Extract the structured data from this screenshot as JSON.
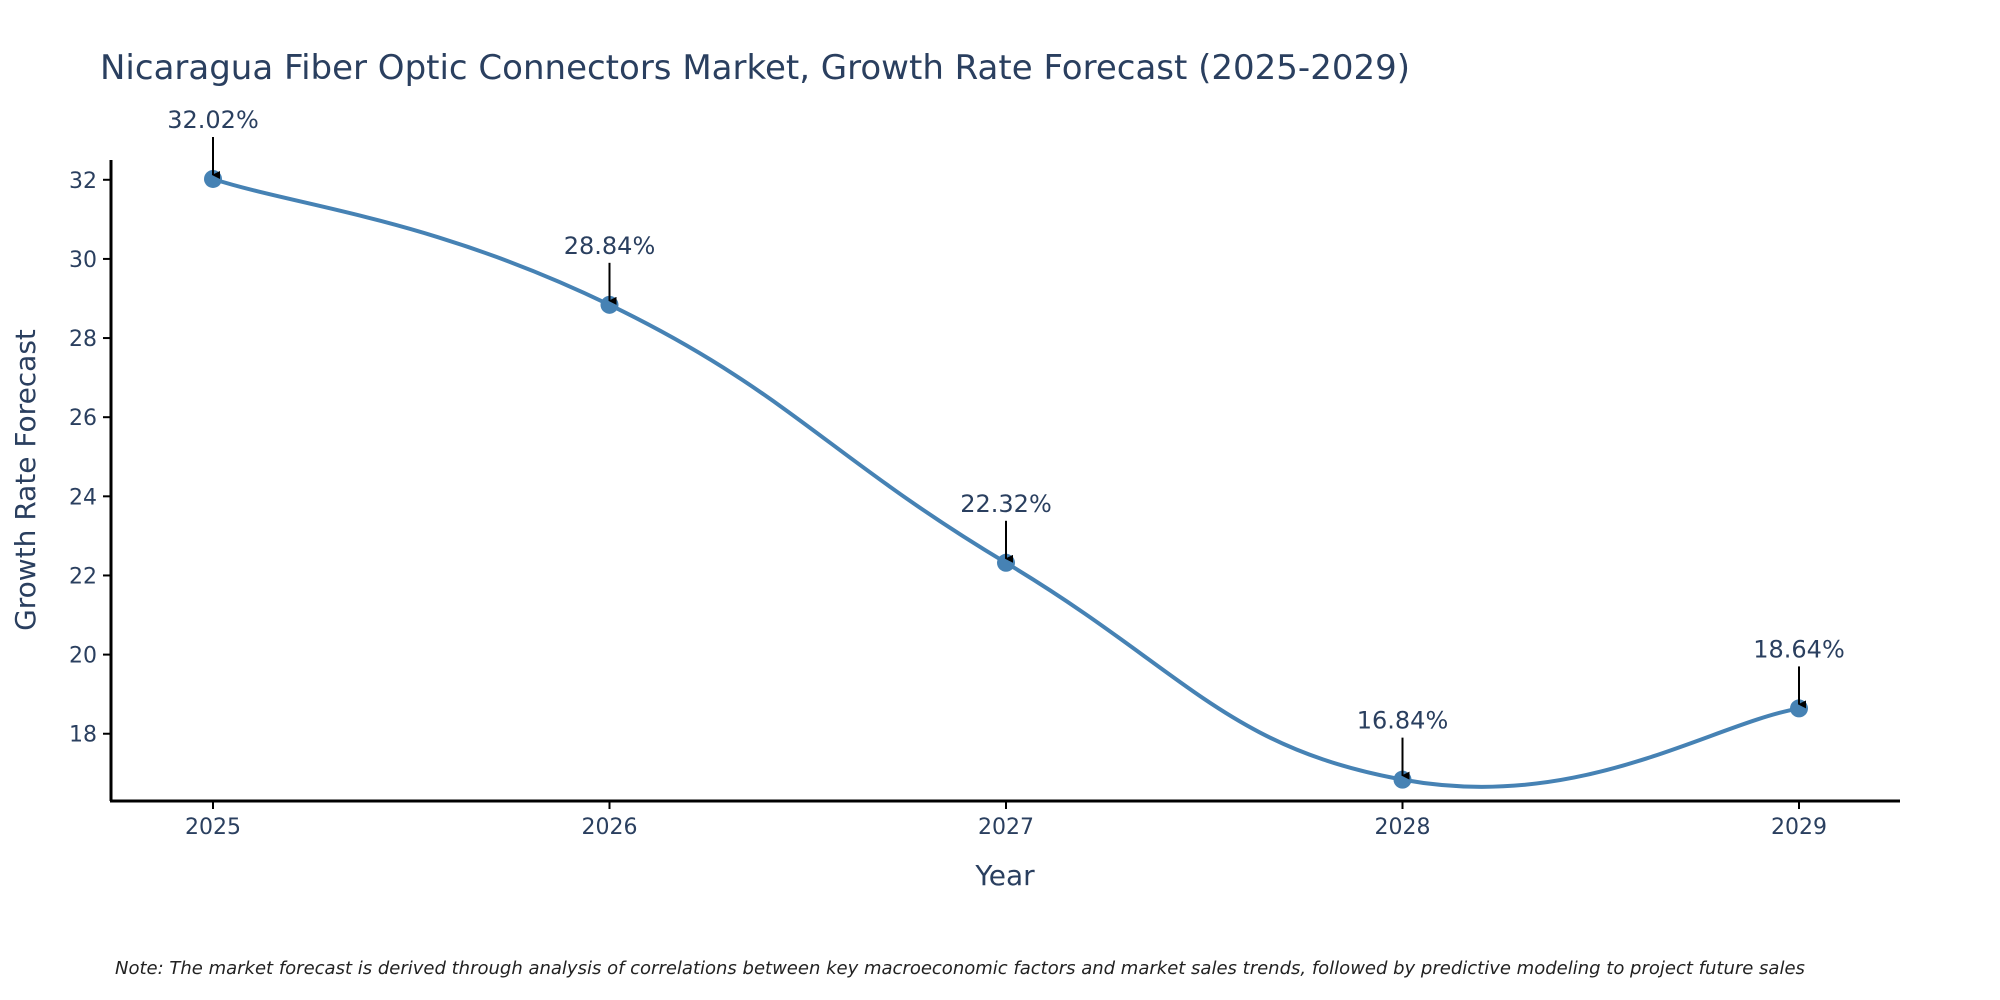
{
  "colors": {
    "line": "#4682b4",
    "axis": "#000000",
    "text": "#2a3f5f",
    "arrow": "#000000"
  },
  "chart_data": {
    "type": "line",
    "title": "Nicaragua Fiber Optic Connectors Market, Growth Rate Forecast (2025-2029)",
    "xlabel": "Year",
    "ylabel": "Growth Rate Forecast",
    "categories": [
      "2025",
      "2026",
      "2027",
      "2028",
      "2029"
    ],
    "series": [
      {
        "name": "Growth Rate Forecast",
        "values": [
          32.02,
          28.84,
          22.32,
          16.84,
          18.64
        ],
        "labels": [
          "32.02%",
          "28.84%",
          "22.32%",
          "16.84%",
          "18.64%"
        ]
      }
    ],
    "yticks": [
      18,
      20,
      22,
      24,
      26,
      28,
      30,
      32
    ],
    "ylim": [
      16.3,
      32.5
    ],
    "smoothing": "spline",
    "grid": false,
    "note": "Note: The market forecast is derived through analysis of correlations between key macroeconomic factors and market sales trends, followed by predictive modeling to project future sales"
  }
}
